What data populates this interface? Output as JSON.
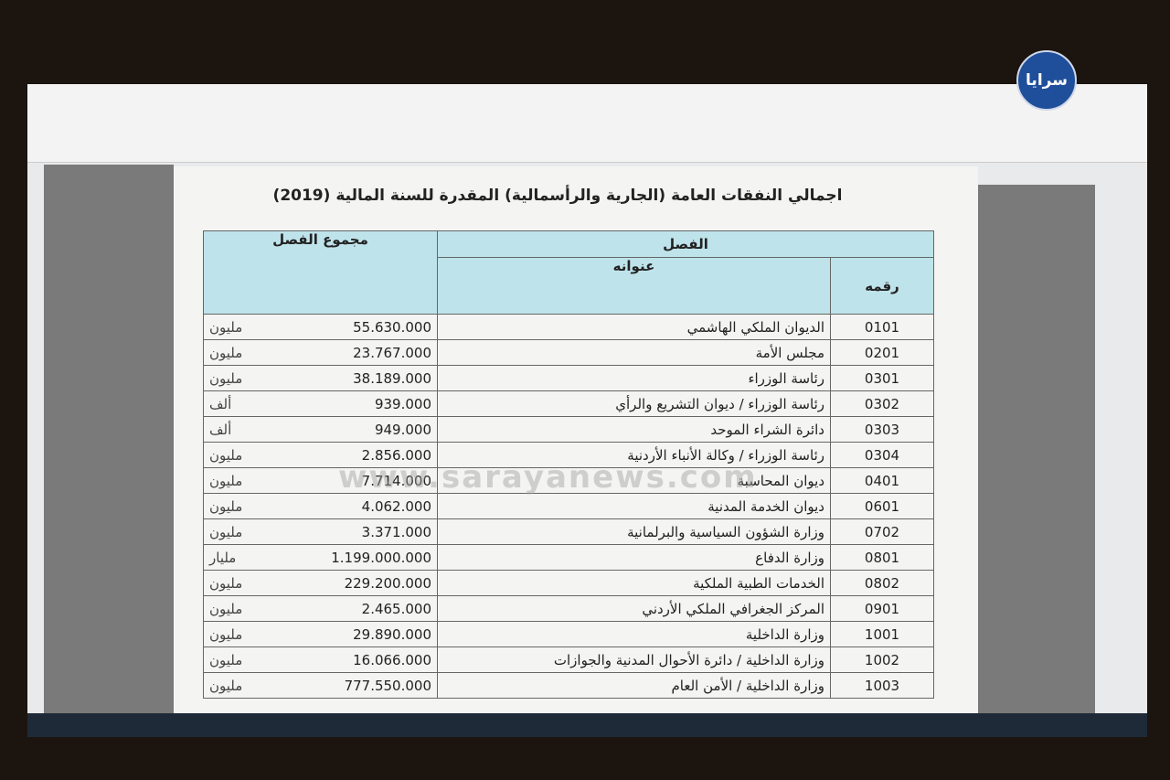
{
  "logo": "سرايا",
  "document": {
    "title": "اجمالي النفقات العامة (الجارية والرأسمالية) المقدرة للسنة المالية (2019)",
    "table": {
      "headers": {
        "section": "الفصل",
        "title": "عنوانه",
        "number": "رقمه",
        "total": "مجموع الفصل"
      },
      "rows": [
        [
          "0101",
          "الديوان الملكي الهاشمي",
          "55.630.000",
          "مليون"
        ],
        [
          "0201",
          "مجلس الأمة",
          "23.767.000",
          "مليون"
        ],
        [
          "0301",
          "رئاسة الوزراء",
          "38.189.000",
          "مليون"
        ],
        [
          "0302",
          "رئاسة الوزراء / ديوان التشريع والرأي",
          "939.000",
          "ألف"
        ],
        [
          "0303",
          "دائرة الشراء الموحد",
          "949.000",
          "ألف"
        ],
        [
          "0304",
          "رئاسة الوزراء / وكالة الأنباء الأردنية",
          "2.856.000",
          "مليون"
        ],
        [
          "0401",
          "ديوان المحاسبة",
          "7.714.000",
          "مليون"
        ],
        [
          "0601",
          "ديوان الخدمة المدنية",
          "4.062.000",
          "مليون"
        ],
        [
          "0702",
          "وزارة الشؤون السياسية والبرلمانية",
          "3.371.000",
          "مليون"
        ],
        [
          "0801",
          "وزارة الدفاع",
          "1.199.000.000",
          "مليار"
        ],
        [
          "0802",
          "الخدمات الطبية الملكية",
          "229.200.000",
          "مليون"
        ],
        [
          "0901",
          "المركز الجغرافي الملكي الأردني",
          "2.465.000",
          "مليون"
        ],
        [
          "1001",
          "وزارة الداخلية",
          "29.890.000",
          "مليون"
        ],
        [
          "1002",
          "وزارة الداخلية / دائرة الأحوال المدنية والجوازات",
          "16.066.000",
          "مليون"
        ],
        [
          "1003",
          "وزارة الداخلية / الأمن العام",
          "777.550.000",
          "مليون"
        ]
      ]
    },
    "watermark": "www.sarayanews.com"
  }
}
